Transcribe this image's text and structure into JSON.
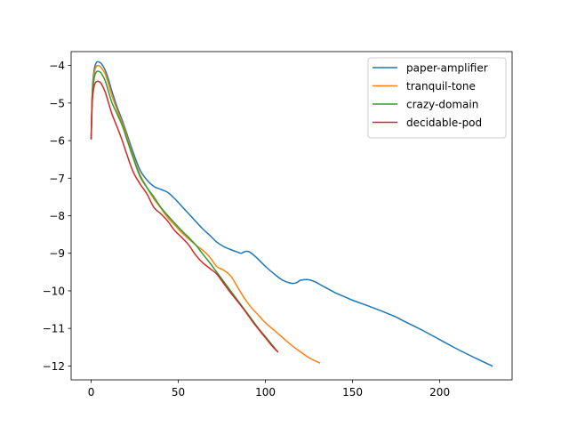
{
  "chart_data": {
    "type": "line",
    "title": "",
    "xlabel": "",
    "ylabel": "",
    "xlim": [
      -11.5,
      241.5
    ],
    "ylim": [
      -12.37,
      -3.63
    ],
    "xticks": [
      0,
      50,
      100,
      150,
      200
    ],
    "yticks": [
      -12,
      -11,
      -10,
      -9,
      -8,
      -7,
      -6,
      -5,
      -4
    ],
    "grid": false,
    "legend_position": "top-right",
    "series": [
      {
        "name": "paper-amplifier",
        "color": "#1f77b4",
        "x": [
          0,
          0.5,
          1,
          2,
          3,
          4,
          5,
          6,
          8,
          10,
          12,
          15,
          18,
          20,
          24,
          28,
          32,
          36,
          40,
          44,
          48,
          52,
          56,
          60,
          64,
          68,
          72,
          76,
          80,
          84,
          86,
          88,
          90,
          92,
          95,
          100,
          105,
          110,
          115,
          118,
          120,
          124,
          128,
          132,
          136,
          140,
          145,
          150,
          160,
          170,
          175,
          180,
          190,
          200,
          210,
          220,
          230
        ],
        "y": [
          -5.9,
          -4.9,
          -4.4,
          -4.05,
          -3.92,
          -3.9,
          -3.92,
          -3.96,
          -4.12,
          -4.38,
          -4.7,
          -5.12,
          -5.48,
          -5.75,
          -6.3,
          -6.78,
          -7.05,
          -7.22,
          -7.3,
          -7.38,
          -7.55,
          -7.75,
          -7.95,
          -8.15,
          -8.35,
          -8.52,
          -8.7,
          -8.82,
          -8.9,
          -8.97,
          -9.0,
          -8.96,
          -8.95,
          -9.0,
          -9.12,
          -9.35,
          -9.55,
          -9.72,
          -9.8,
          -9.78,
          -9.72,
          -9.7,
          -9.75,
          -9.85,
          -9.95,
          -10.05,
          -10.15,
          -10.25,
          -10.42,
          -10.6,
          -10.7,
          -10.82,
          -11.05,
          -11.3,
          -11.55,
          -11.78,
          -12.0
        ]
      },
      {
        "name": "tranquil-tone",
        "color": "#ff7f0e",
        "x": [
          0,
          0.5,
          1,
          2,
          3,
          4,
          5,
          6,
          8,
          10,
          12,
          15,
          18,
          20,
          24,
          28,
          32,
          36,
          40,
          44,
          48,
          52,
          56,
          60,
          64,
          68,
          72,
          76,
          80,
          84,
          88,
          92,
          96,
          100,
          105,
          110,
          115,
          120,
          125,
          131
        ],
        "y": [
          -5.95,
          -4.95,
          -4.5,
          -4.15,
          -4.02,
          -4.0,
          -4.02,
          -4.07,
          -4.22,
          -4.5,
          -4.82,
          -5.2,
          -5.55,
          -5.82,
          -6.4,
          -6.9,
          -7.25,
          -7.55,
          -7.8,
          -8.05,
          -8.25,
          -8.45,
          -8.62,
          -8.78,
          -8.92,
          -9.1,
          -9.35,
          -9.45,
          -9.6,
          -9.9,
          -10.2,
          -10.45,
          -10.65,
          -10.85,
          -11.05,
          -11.25,
          -11.45,
          -11.62,
          -11.78,
          -11.92
        ]
      },
      {
        "name": "crazy-domain",
        "color": "#2ca02c",
        "x": [
          0,
          0.5,
          1,
          2,
          3,
          4,
          5,
          6,
          8,
          10,
          12,
          15,
          18,
          20,
          24,
          28,
          32,
          36,
          40,
          44,
          48,
          52,
          56,
          60,
          64,
          68,
          72,
          76,
          80,
          84,
          88,
          92,
          96,
          100,
          104,
          107
        ],
        "y": [
          -5.95,
          -5.0,
          -4.6,
          -4.28,
          -4.17,
          -4.15,
          -4.17,
          -4.22,
          -4.4,
          -4.7,
          -5.0,
          -5.3,
          -5.62,
          -5.9,
          -6.45,
          -6.95,
          -7.25,
          -7.5,
          -7.78,
          -8.0,
          -8.2,
          -8.4,
          -8.58,
          -8.78,
          -9.02,
          -9.25,
          -9.5,
          -9.75,
          -10.0,
          -10.25,
          -10.5,
          -10.75,
          -11.0,
          -11.22,
          -11.45,
          -11.62
        ]
      },
      {
        "name": "decidable-pod",
        "color": "#d62728",
        "x": [
          0,
          0.5,
          1,
          2,
          3,
          4,
          5,
          6,
          8,
          10,
          12,
          15,
          18,
          20,
          24,
          28,
          32,
          36,
          40,
          44,
          48,
          52,
          56,
          60,
          64,
          68,
          72,
          76,
          80,
          84,
          88,
          92,
          96,
          100,
          104,
          107
        ],
        "y": [
          -5.95,
          -5.1,
          -4.75,
          -4.5,
          -4.43,
          -4.42,
          -4.44,
          -4.5,
          -4.7,
          -5.0,
          -5.3,
          -5.65,
          -6.02,
          -6.3,
          -6.82,
          -7.15,
          -7.42,
          -7.78,
          -7.95,
          -8.15,
          -8.4,
          -8.58,
          -8.78,
          -9.05,
          -9.25,
          -9.4,
          -9.55,
          -9.8,
          -10.05,
          -10.28,
          -10.52,
          -10.78,
          -11.02,
          -11.25,
          -11.48,
          -11.62
        ]
      }
    ]
  }
}
